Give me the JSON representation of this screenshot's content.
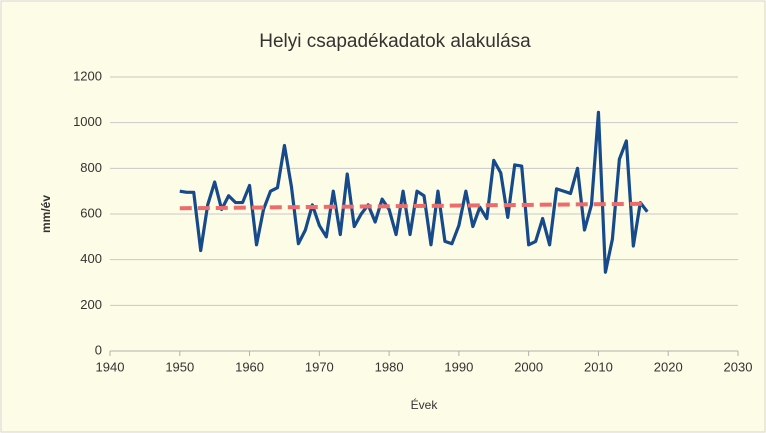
{
  "chart_data": {
    "type": "line",
    "title": "Helyi csapadékadatok alakulása",
    "xlabel": "Évek",
    "ylabel": "mm/év",
    "series": [
      {
        "color": "#164a8a",
        "dashed": false,
        "x": [
          1950,
          1951,
          1952,
          1953,
          1954,
          1955,
          1956,
          1957,
          1958,
          1959,
          1960,
          1961,
          1962,
          1963,
          1964,
          1965,
          1966,
          1967,
          1968,
          1969,
          1970,
          1971,
          1972,
          1973,
          1974,
          1975,
          1976,
          1977,
          1978,
          1979,
          1980,
          1981,
          1982,
          1983,
          1984,
          1985,
          1986,
          1987,
          1988,
          1989,
          1990,
          1991,
          1992,
          1993,
          1994,
          1995,
          1996,
          1997,
          1998,
          1999,
          2000,
          2001,
          2002,
          2003,
          2004,
          2005,
          2006,
          2007,
          2008,
          2009,
          2010,
          2011,
          2012,
          2013,
          2014,
          2015,
          2016,
          2017
        ],
        "values": [
          700,
          695,
          695,
          440,
          640,
          740,
          620,
          680,
          650,
          650,
          725,
          465,
          620,
          700,
          715,
          900,
          720,
          470,
          530,
          640,
          550,
          500,
          700,
          510,
          775,
          545,
          600,
          640,
          565,
          665,
          620,
          510,
          700,
          510,
          700,
          680,
          465,
          700,
          480,
          470,
          550,
          700,
          545,
          630,
          580,
          835,
          780,
          585,
          815,
          810,
          465,
          480,
          580,
          465,
          710,
          700,
          690,
          800,
          530,
          640,
          1045,
          345,
          490,
          840,
          920,
          460,
          650,
          610
        ]
      },
      {
        "color": "#ee6b6b",
        "dashed": true,
        "x": [
          1950,
          2017
        ],
        "values": [
          625,
          645
        ]
      }
    ],
    "xlim": [
      1940,
      2030
    ],
    "xticks": [
      1940,
      1950,
      1960,
      1970,
      1980,
      1990,
      2000,
      2010,
      2020,
      2030
    ],
    "ylim": [
      0,
      1200
    ],
    "yticks": [
      0,
      200,
      400,
      600,
      800,
      1000,
      1200
    ],
    "grid": true
  }
}
